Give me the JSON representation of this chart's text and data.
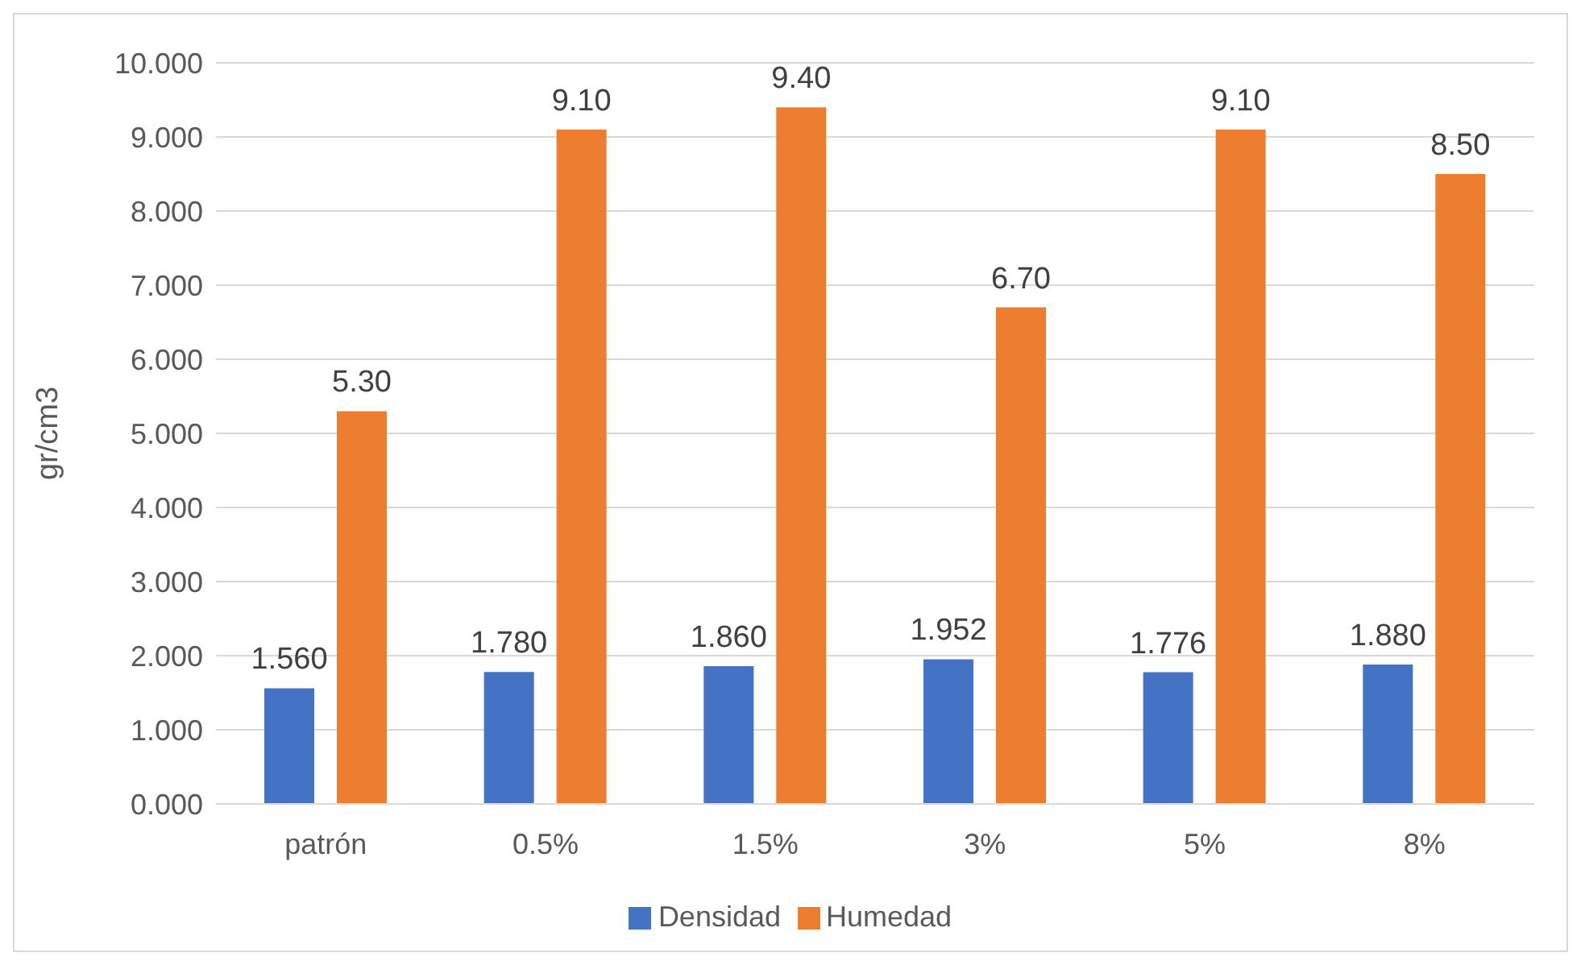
{
  "chart_data": {
    "type": "bar",
    "ylabel": "gr/cm3",
    "categories": [
      "patrón",
      "0.5%",
      "1.5%",
      "3%",
      "5%",
      "8%"
    ],
    "series": [
      {
        "name": "Densidad",
        "color": "#4472c4",
        "values": [
          1.56,
          1.78,
          1.86,
          1.952,
          1.776,
          1.88
        ],
        "value_labels": [
          "1.560",
          "1.780",
          "1.860",
          "1.952",
          "1.776",
          "1.880"
        ]
      },
      {
        "name": "Humedad",
        "color": "#ed7d31",
        "values": [
          5.3,
          9.1,
          9.4,
          6.7,
          9.1,
          8.5
        ],
        "value_labels": [
          "5.30",
          "9.10",
          "9.40",
          "6.70",
          "9.10",
          "8.50"
        ]
      }
    ],
    "ylim": [
      0,
      10
    ],
    "yticks": [
      {
        "value": 0,
        "label": "0.000"
      },
      {
        "value": 1,
        "label": "1.000"
      },
      {
        "value": 2,
        "label": "2.000"
      },
      {
        "value": 3,
        "label": "3.000"
      },
      {
        "value": 4,
        "label": "4.000"
      },
      {
        "value": 5,
        "label": "5.000"
      },
      {
        "value": 6,
        "label": "6.000"
      },
      {
        "value": 7,
        "label": "7.000"
      },
      {
        "value": 8,
        "label": "8.000"
      },
      {
        "value": 9,
        "label": "9.000"
      },
      {
        "value": 10,
        "label": "10.000"
      }
    ],
    "grid": "y",
    "legend": "bottom"
  }
}
